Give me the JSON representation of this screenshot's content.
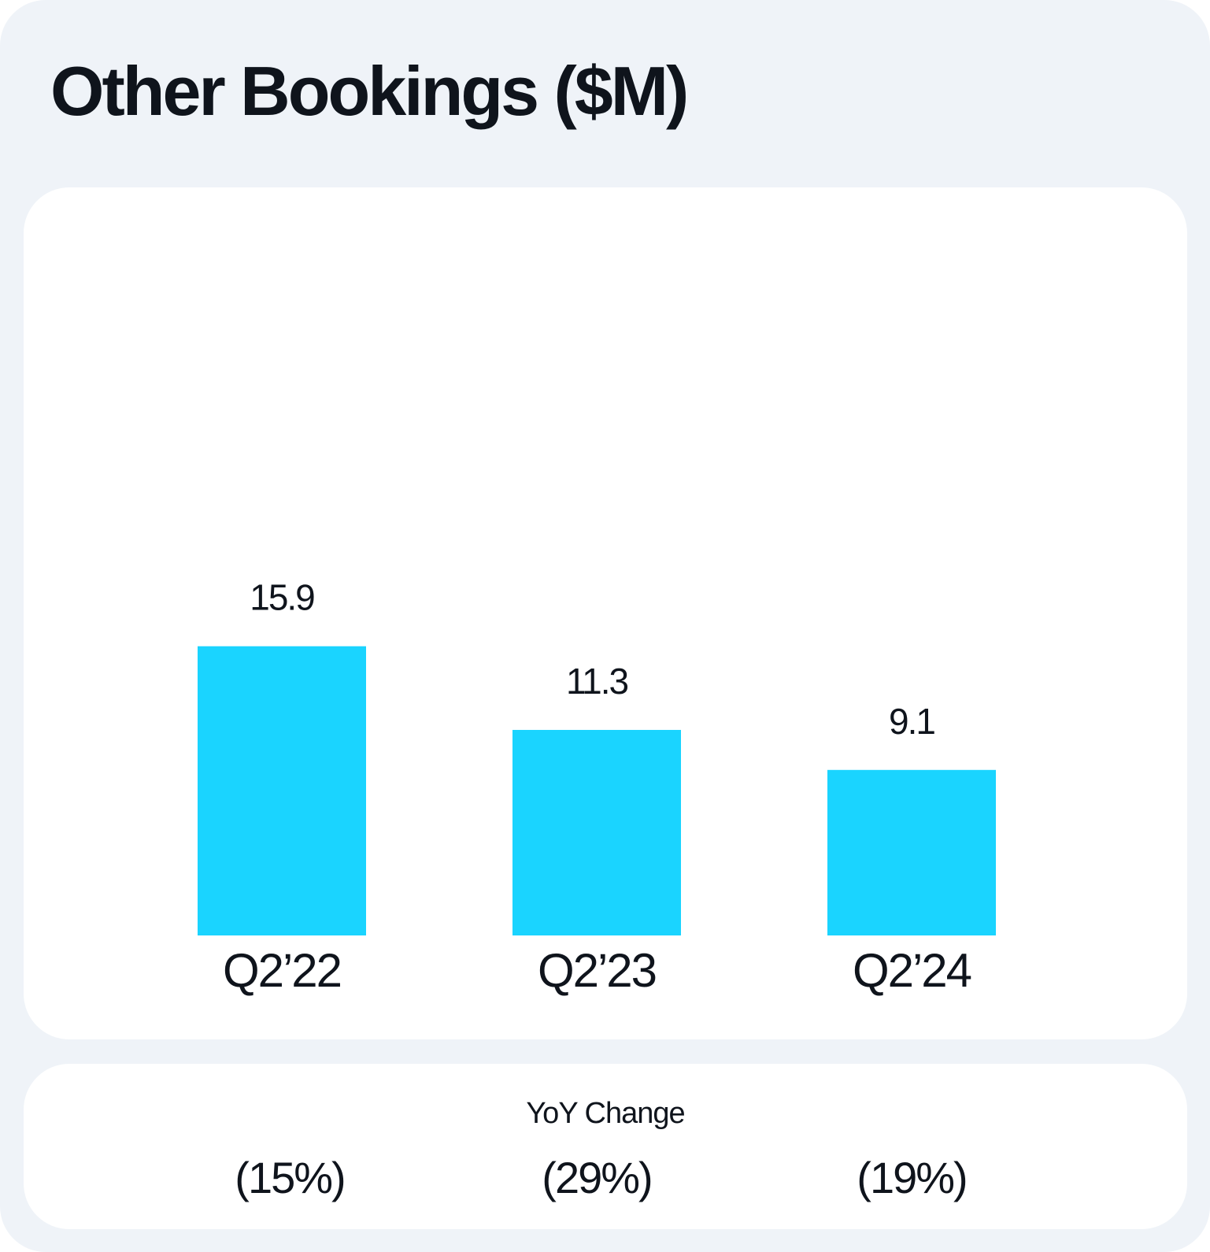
{
  "chart_data": {
    "type": "bar",
    "title": "Other Bookings ($M)",
    "categories": [
      "Q2’22",
      "Q2’23",
      "Q2’24"
    ],
    "values": [
      15.9,
      11.3,
      9.1
    ],
    "value_labels": [
      "15.9",
      "11.3",
      "9.1"
    ],
    "bar_color": "#1ad4ff",
    "grid": false,
    "yoy": {
      "label": "YoY Change",
      "values": [
        "(15%)",
        "(29%)",
        "(19%)"
      ]
    }
  }
}
